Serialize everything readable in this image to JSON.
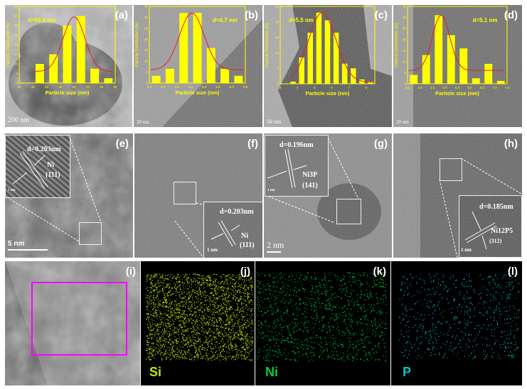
{
  "colors": {
    "hist": "#ffff00",
    "fit": "#e82020",
    "Si": "#c8e600",
    "Ni": "#00d040",
    "P": "#00c8c8",
    "roi": "#ff00ff"
  },
  "chart_data": [
    {
      "panel": "(a)",
      "type": "bar",
      "d_label": "d=58.6 nm",
      "xlabel": "Particle size (nm)",
      "ylabel": "Particle Distribution (%)",
      "xlim": [
        20,
        90
      ],
      "ylim": [
        0,
        40
      ],
      "xticks": [
        "20",
        "30",
        "40",
        "50",
        "60",
        "70",
        "80",
        "90"
      ],
      "yticks": [
        "0",
        "5",
        "10",
        "15",
        "20",
        "25",
        "30",
        "35",
        "40"
      ],
      "x": [
        35,
        45,
        55,
        65,
        75,
        85
      ],
      "values": [
        10,
        15,
        30,
        35,
        7.5,
        2.5
      ],
      "fit": {
        "center": 60,
        "sigma": 8,
        "peak": 34.5,
        "base": 6
      },
      "scale_bar": "200 nm"
    },
    {
      "panel": "(b)",
      "type": "bar",
      "d_label": "d=4.7 nm",
      "xlabel": "Particle size (nm)",
      "ylabel": "Particle Distribution (%)",
      "xlim": [
        3.0,
        6.5
      ],
      "ylim": [
        0,
        35
      ],
      "xticks": [
        "3.0",
        "3.5",
        "4.0",
        "4.5",
        "5.0",
        "5.5",
        "6.0",
        "6.5"
      ],
      "yticks": [
        "0",
        "5",
        "10",
        "15",
        "20",
        "25",
        "30",
        "35"
      ],
      "x": [
        3.25,
        3.75,
        4.25,
        4.75,
        5.25,
        5.75,
        6.25
      ],
      "values": [
        3.3,
        6.5,
        32,
        32,
        16,
        6.5,
        3.3
      ],
      "fit": {
        "center": 4.55,
        "sigma": 0.45,
        "peak": 32,
        "base": 6
      },
      "scale_bar": "20 nm"
    },
    {
      "panel": "(c)",
      "type": "bar",
      "d_label": "d=5.5 nm",
      "xlabel": "Particle size (nm)",
      "ylabel": "Particle Distribution (%)",
      "xlim": [
        3,
        8.5
      ],
      "ylim": [
        0,
        25
      ],
      "xticks": [
        "3",
        "4",
        "5",
        "6",
        "7",
        "8"
      ],
      "yticks": [
        "0",
        "5",
        "10",
        "15",
        "20",
        "25"
      ],
      "x": [
        3.75,
        4.25,
        4.75,
        5.25,
        5.75,
        6.25,
        6.75,
        7.25,
        7.75,
        8.25
      ],
      "values": [
        0.7,
        8.5,
        16.5,
        23,
        20.5,
        16.5,
        6.5,
        5,
        1.4,
        0.7
      ],
      "fit": {
        "center": 5.45,
        "sigma": 0.8,
        "peak": 23,
        "base": 0.5
      },
      "scale_bar": "50 nm"
    },
    {
      "panel": "(d)",
      "type": "bar",
      "d_label": "d=5.1 nm",
      "xlabel": "Particle size (nm)",
      "ylabel": "Particle Distribution (%)",
      "xlim": [
        3.5,
        7.5
      ],
      "ylim": [
        0,
        35
      ],
      "xticks": [
        "3.5",
        "4.0",
        "4.5",
        "5.0",
        "5.5",
        "6.0",
        "6.5",
        "7.0",
        "7.5"
      ],
      "yticks": [
        "0",
        "5",
        "10",
        "15",
        "20",
        "25",
        "30",
        "35"
      ],
      "x": [
        3.75,
        4.25,
        4.75,
        5.25,
        5.75,
        6.25,
        6.75,
        7.25
      ],
      "values": [
        4,
        13,
        31,
        22,
        16,
        2.5,
        9,
        1.3
      ],
      "fit": {
        "center": 4.85,
        "sigma": 0.35,
        "peak": 31,
        "base": 6
      },
      "scale_bar": "20 nm"
    }
  ],
  "hrtem": {
    "e": {
      "label": "(e)",
      "d": "d=0.203nm",
      "phase": "Ni",
      "plane": "(111)",
      "inset_scale": "1 nm",
      "scale_bar": "5 nm"
    },
    "f": {
      "label": "(f)",
      "d": "d=0.203nm",
      "phase": "Ni",
      "plane": "(111)",
      "inset_scale": "1 nm"
    },
    "g": {
      "label": "(g)",
      "d": "d=0.196nm",
      "phase": "Ni3P",
      "plane": "(141)",
      "inset_scale": "1 nm",
      "scale_bar": "2 nm"
    },
    "h": {
      "label": "(h)",
      "d": "d=0.185nm",
      "phase": "Ni12P5",
      "plane": "(312)",
      "inset_scale": "1 nm"
    }
  },
  "mapping": {
    "i": {
      "label": "(i)"
    },
    "j": {
      "label": "(j)",
      "element": "Si"
    },
    "k": {
      "label": "(k)",
      "element": "Ni"
    },
    "l": {
      "label": "(l)",
      "element": "P"
    }
  }
}
